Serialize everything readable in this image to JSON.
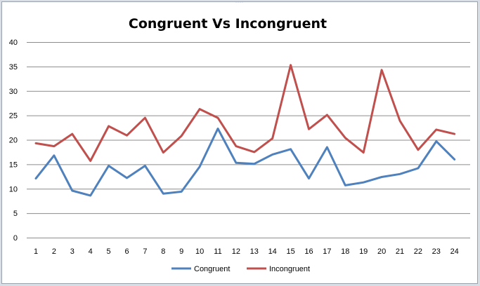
{
  "chart_data": {
    "type": "line",
    "title": "Congruent Vs Incongruent",
    "xlabel": "",
    "ylabel": "",
    "x": [
      1,
      2,
      3,
      4,
      5,
      6,
      7,
      8,
      9,
      10,
      11,
      12,
      13,
      14,
      15,
      16,
      17,
      18,
      19,
      20,
      21,
      22,
      23,
      24
    ],
    "ylim": [
      0,
      40
    ],
    "yticks": [
      0,
      5,
      10,
      15,
      20,
      25,
      30,
      35,
      40
    ],
    "grid": true,
    "legend_position": "bottom",
    "series": [
      {
        "name": "Congruent",
        "color": "#4f81bd",
        "values": [
          12.1,
          16.8,
          9.6,
          8.6,
          14.7,
          12.2,
          14.7,
          9.0,
          9.4,
          14.5,
          22.3,
          15.3,
          15.1,
          17.0,
          18.1,
          12.1,
          18.5,
          10.7,
          11.3,
          12.4,
          13.0,
          14.2,
          19.7,
          16.0
        ]
      },
      {
        "name": "Incongruent",
        "color": "#c0504d",
        "values": [
          19.3,
          18.7,
          21.2,
          15.7,
          22.8,
          20.9,
          24.5,
          17.4,
          20.8,
          26.3,
          24.5,
          18.7,
          17.5,
          20.3,
          35.3,
          22.2,
          25.1,
          20.4,
          17.4,
          34.3,
          23.9,
          17.96,
          22.1,
          21.2
        ]
      }
    ]
  }
}
